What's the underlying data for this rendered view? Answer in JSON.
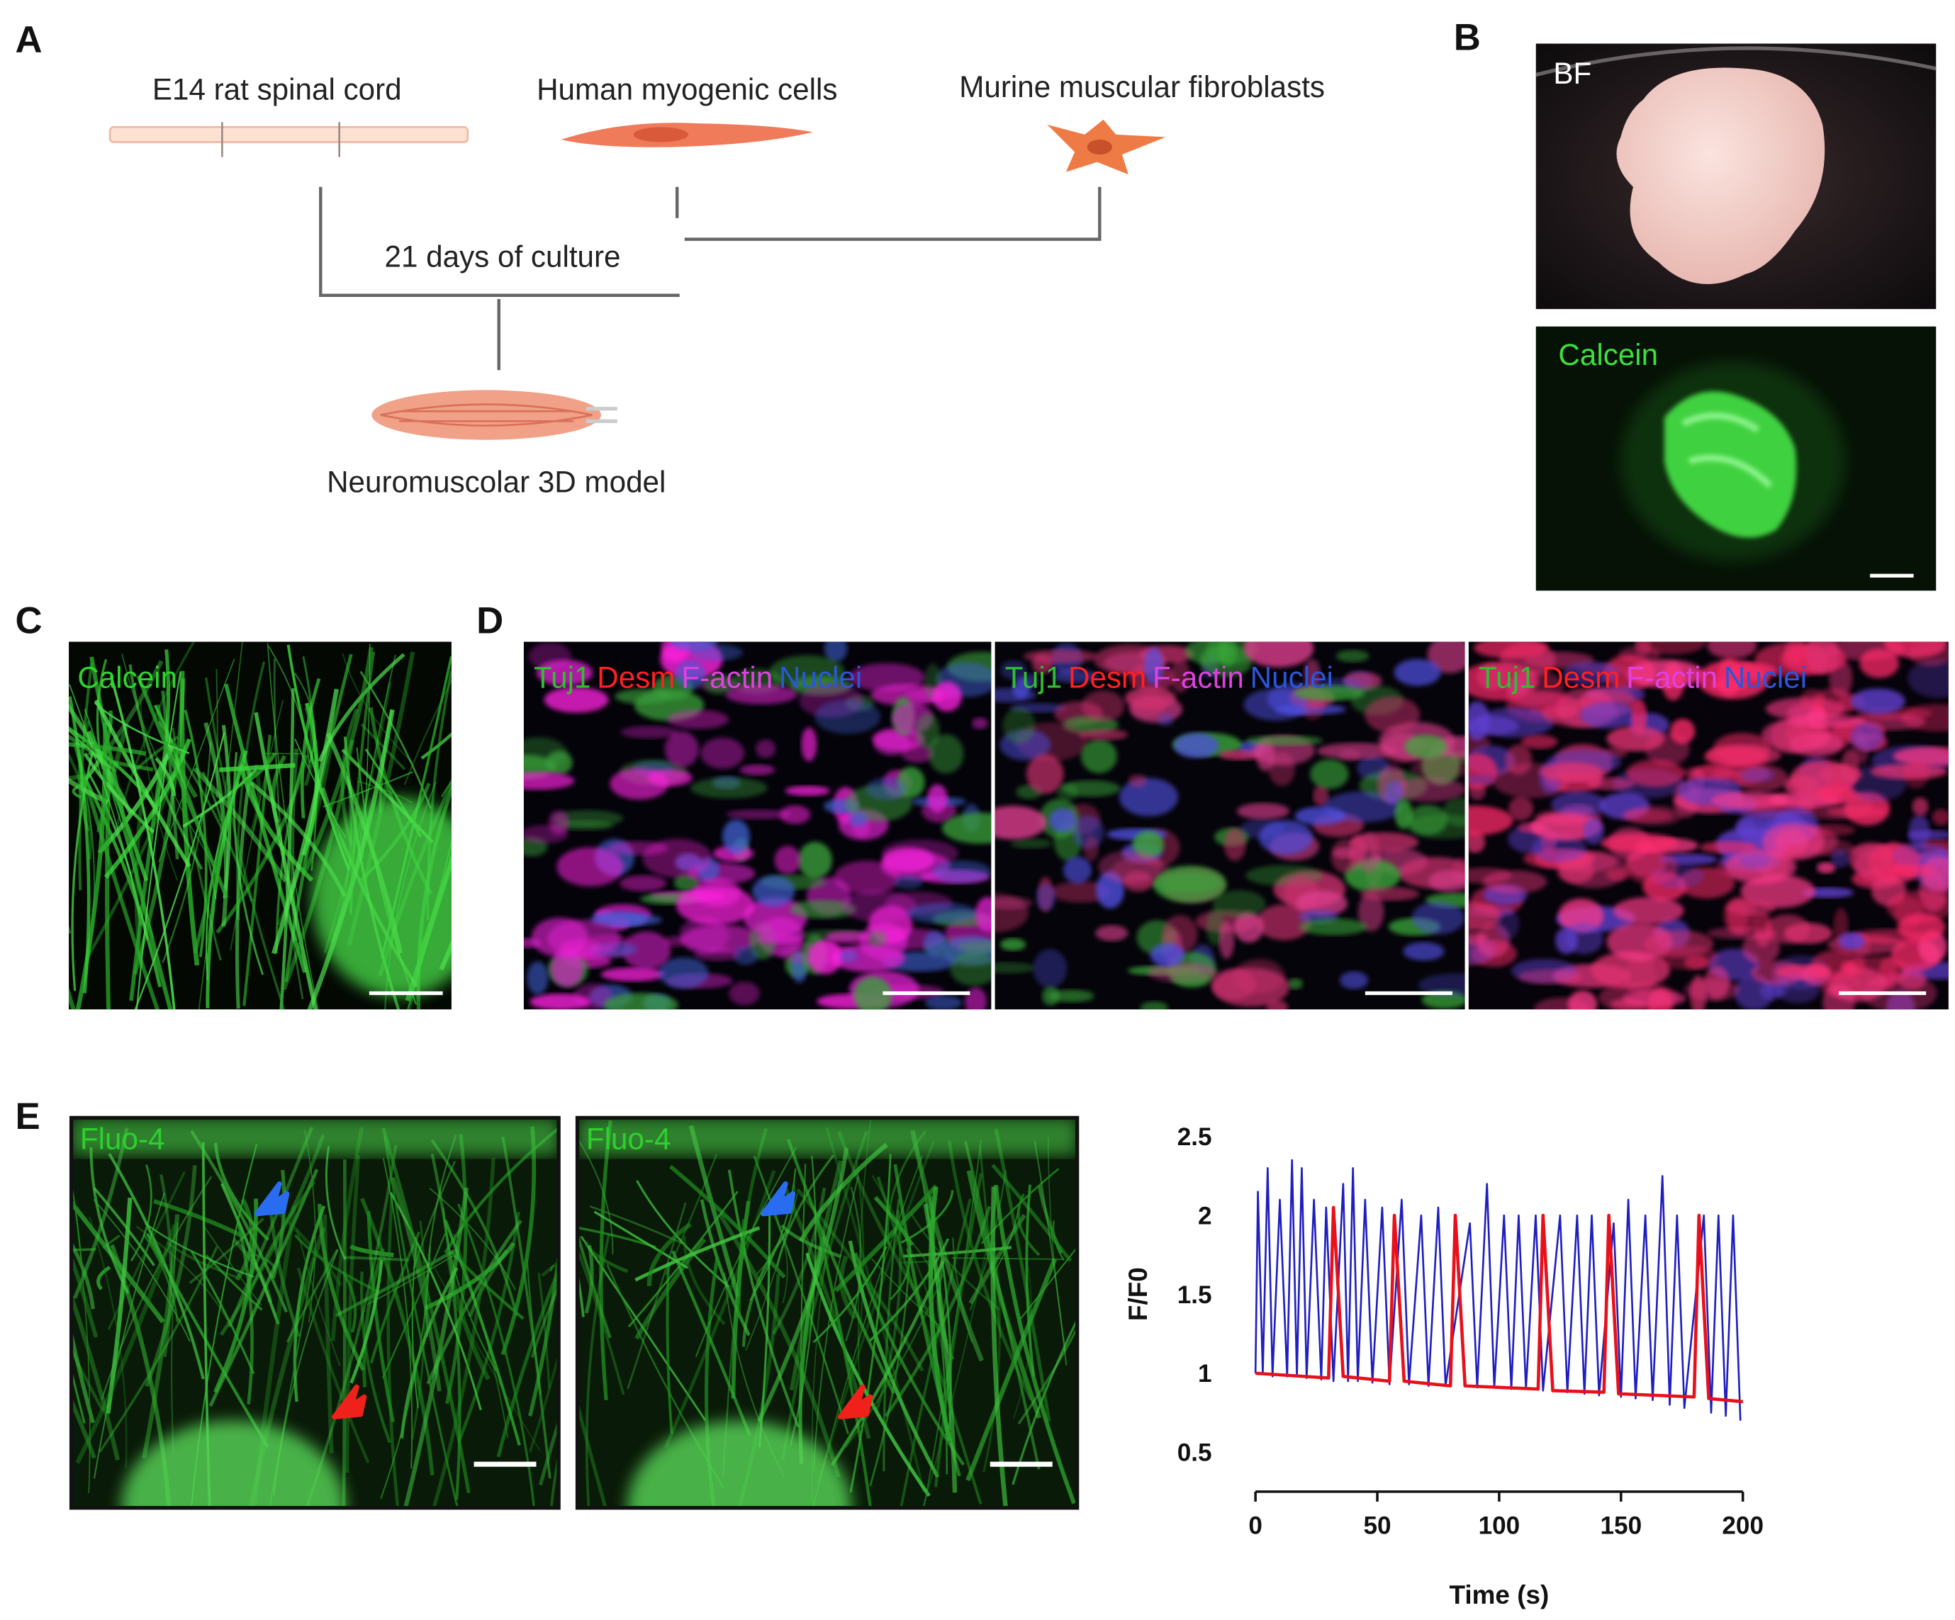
{
  "panel_labels": [
    "A",
    "B",
    "C",
    "D",
    "E"
  ],
  "diagram": {
    "sources": [
      "E14 rat spinal cord",
      "Human myogenic cells",
      "Murine muscular fibroblasts"
    ],
    "step": "21 days of culture",
    "result": "Neuromuscolar 3D model"
  },
  "images": {
    "b": [
      "BF",
      "Calcein"
    ],
    "c": "Calcein",
    "d": [
      [
        "Tuj1",
        "Desm",
        "F-actin",
        "Nuclei"
      ],
      [
        "Tuj1",
        "Desm",
        "F-actin",
        "Nuclei"
      ],
      [
        "Tuj1",
        "Desm",
        "F-actin",
        "Nuclei"
      ]
    ],
    "e": [
      "Fluo-4",
      "Fluo-4"
    ]
  },
  "chart_data": {
    "type": "line",
    "x_label": "Time (s)",
    "y_label": "F/F0",
    "xlim": [
      0,
      200
    ],
    "ylim": [
      0.25,
      2.5
    ],
    "xticks": [
      0,
      50,
      100,
      150,
      200
    ],
    "yticks": [
      0.5,
      1,
      1.5,
      2,
      2.5
    ],
    "series": [
      {
        "color": "#1f1fbf",
        "x": [
          0,
          1,
          3,
          5,
          7,
          10,
          13,
          15,
          17,
          19,
          21,
          24,
          27,
          29,
          32,
          36,
          38,
          40,
          42,
          45,
          48,
          52,
          55,
          60,
          63,
          68,
          71,
          75,
          78,
          88,
          91,
          95,
          98,
          102,
          105,
          108,
          111,
          115,
          118,
          125,
          128,
          132,
          135,
          138,
          141,
          147,
          150,
          153,
          156,
          160,
          163,
          167,
          170,
          173,
          176,
          184,
          187,
          190,
          193,
          196,
          199
        ],
        "values": [
          1.0,
          2.15,
          1.0,
          2.3,
          0.98,
          2.1,
          0.98,
          2.35,
          0.98,
          2.3,
          0.97,
          2.1,
          0.96,
          2.05,
          0.95,
          2.2,
          0.95,
          2.3,
          0.95,
          2.1,
          0.94,
          2.05,
          0.93,
          2.1,
          0.93,
          2.0,
          0.92,
          2.05,
          0.92,
          1.95,
          0.91,
          2.2,
          0.91,
          2.0,
          0.9,
          2.0,
          0.9,
          2.0,
          0.89,
          2.0,
          0.88,
          2.0,
          0.87,
          2.0,
          0.86,
          1.95,
          0.85,
          2.1,
          0.84,
          2.0,
          0.83,
          2.25,
          0.8,
          2.0,
          0.78,
          2.0,
          0.75,
          2.0,
          0.73,
          2.0,
          0.7
        ]
      },
      {
        "color": "#e8101a",
        "x": [
          0,
          30,
          32,
          36,
          55,
          57,
          61,
          80,
          82,
          86,
          116,
          118,
          122,
          143,
          145,
          149,
          180,
          182,
          186,
          200
        ],
        "values": [
          1.0,
          0.97,
          2.05,
          0.98,
          0.95,
          2.0,
          0.95,
          0.92,
          2.0,
          0.92,
          0.9,
          2.0,
          0.89,
          0.88,
          2.0,
          0.87,
          0.85,
          2.0,
          0.84,
          0.82
        ]
      }
    ]
  }
}
